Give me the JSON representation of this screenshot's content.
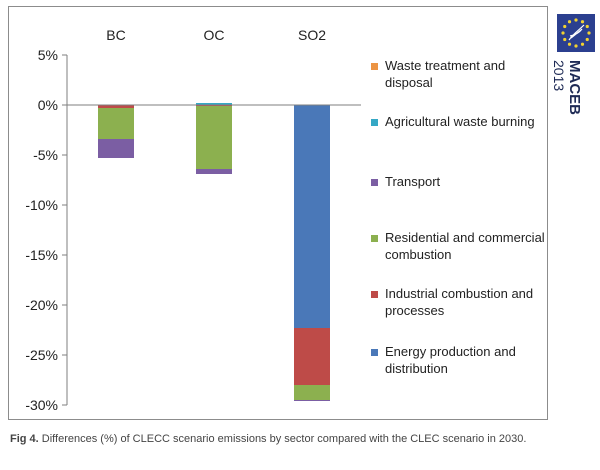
{
  "figure": {
    "caption_label": "Fig 4.",
    "caption_text": "Differences (%) of CLECC scenario emissions by sector compared with the CLEC scenario in 2030."
  },
  "logo": {
    "name": "MACEB",
    "year": "2013",
    "colors": {
      "flag": "#2b3f8f",
      "stars": "#f2d230",
      "text": "#1e2a55"
    }
  },
  "chart_data": {
    "type": "bar",
    "stacked": true,
    "categories": [
      "BC",
      "OC",
      "SO2"
    ],
    "ylim": [
      -30,
      5
    ],
    "yticks": [
      5,
      0,
      -5,
      -10,
      -15,
      -20,
      -25,
      -30
    ],
    "ytick_labels": [
      "5%",
      "0%",
      "-5%",
      "-10%",
      "-15%",
      "-20%",
      "-25%",
      "-30%"
    ],
    "title": "",
    "xlabel": "",
    "ylabel": "",
    "grid": false,
    "legend_position": "right",
    "series": [
      {
        "name": "Energy production and distribution",
        "color": "#4a78b8",
        "values": [
          0.0,
          0.0,
          -22.3
        ]
      },
      {
        "name": "Industrial combustion and processes",
        "color": "#be4b48",
        "values": [
          -0.3,
          -0.1,
          -5.7
        ]
      },
      {
        "name": "Residential and commercial combustion",
        "color": "#8cb04f",
        "values": [
          -3.1,
          -6.3,
          -1.5
        ]
      },
      {
        "name": "Transport",
        "color": "#7b5ea3",
        "values": [
          -1.9,
          -0.5,
          -0.1
        ]
      },
      {
        "name": "Agricultural waste burning",
        "color": "#35a8c5",
        "values": [
          0.0,
          0.2,
          0.0
        ]
      },
      {
        "name": "Waste treatment and disposal",
        "color": "#ec9443",
        "values": [
          0.0,
          0.0,
          0.0
        ]
      }
    ]
  }
}
